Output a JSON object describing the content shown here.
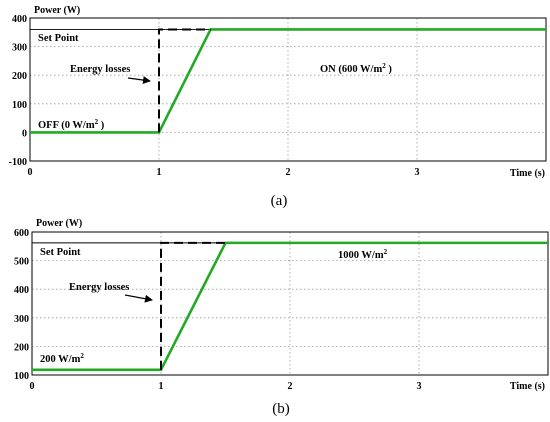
{
  "chart_data": [
    {
      "type": "line",
      "panel_caption": "(a)",
      "ylabel": "Power (W)",
      "xlabel": "Time (s)",
      "xlim": [
        0,
        4
      ],
      "ylim": [
        -100,
        400
      ],
      "xticks": [
        0,
        1,
        2,
        3
      ],
      "yticks": [
        -100,
        0,
        100,
        200,
        300,
        400
      ],
      "grid": true,
      "series": [
        {
          "role": "measured-power",
          "color": "#22aa22",
          "style": "solid",
          "x": [
            0,
            1.0,
            1.4,
            4.0
          ],
          "y": [
            0,
            0,
            360,
            360
          ]
        },
        {
          "role": "setpoint-reference",
          "color": "#000000",
          "style": "dashed",
          "x": [
            1.0,
            1.0,
            1.4
          ],
          "y": [
            0,
            360,
            360
          ]
        }
      ],
      "setpoint_line": 360,
      "annotations": {
        "set_point": "Set Point",
        "energy_losses": "Energy losses",
        "off_label": "OFF (0 W/m",
        "off_sup": "2",
        "off_tail": " )",
        "on_label": "ON (600 W/m",
        "on_sup": "2",
        "on_tail": "  )"
      }
    },
    {
      "type": "line",
      "panel_caption": "(b)",
      "ylabel": "Power (W)",
      "xlabel": "Time (s)",
      "xlim": [
        0,
        4
      ],
      "ylim": [
        100,
        600
      ],
      "xticks": [
        0,
        1,
        2,
        3
      ],
      "yticks": [
        100,
        200,
        300,
        400,
        500,
        600
      ],
      "grid": true,
      "series": [
        {
          "role": "measured-power",
          "color": "#22aa22",
          "style": "solid",
          "x": [
            0,
            1.0,
            1.5,
            4.0
          ],
          "y": [
            118,
            118,
            562,
            562
          ]
        },
        {
          "role": "setpoint-reference",
          "color": "#000000",
          "style": "dashed",
          "x": [
            1.0,
            1.0,
            1.5
          ],
          "y": [
            118,
            562,
            562
          ]
        }
      ],
      "setpoint_line": 562,
      "annotations": {
        "set_point": "Set Point",
        "energy_losses": "Energy losses",
        "low_label": "200 W/m",
        "low_sup": "2",
        "high_label": "1000 W/m",
        "high_sup": "2"
      }
    }
  ]
}
